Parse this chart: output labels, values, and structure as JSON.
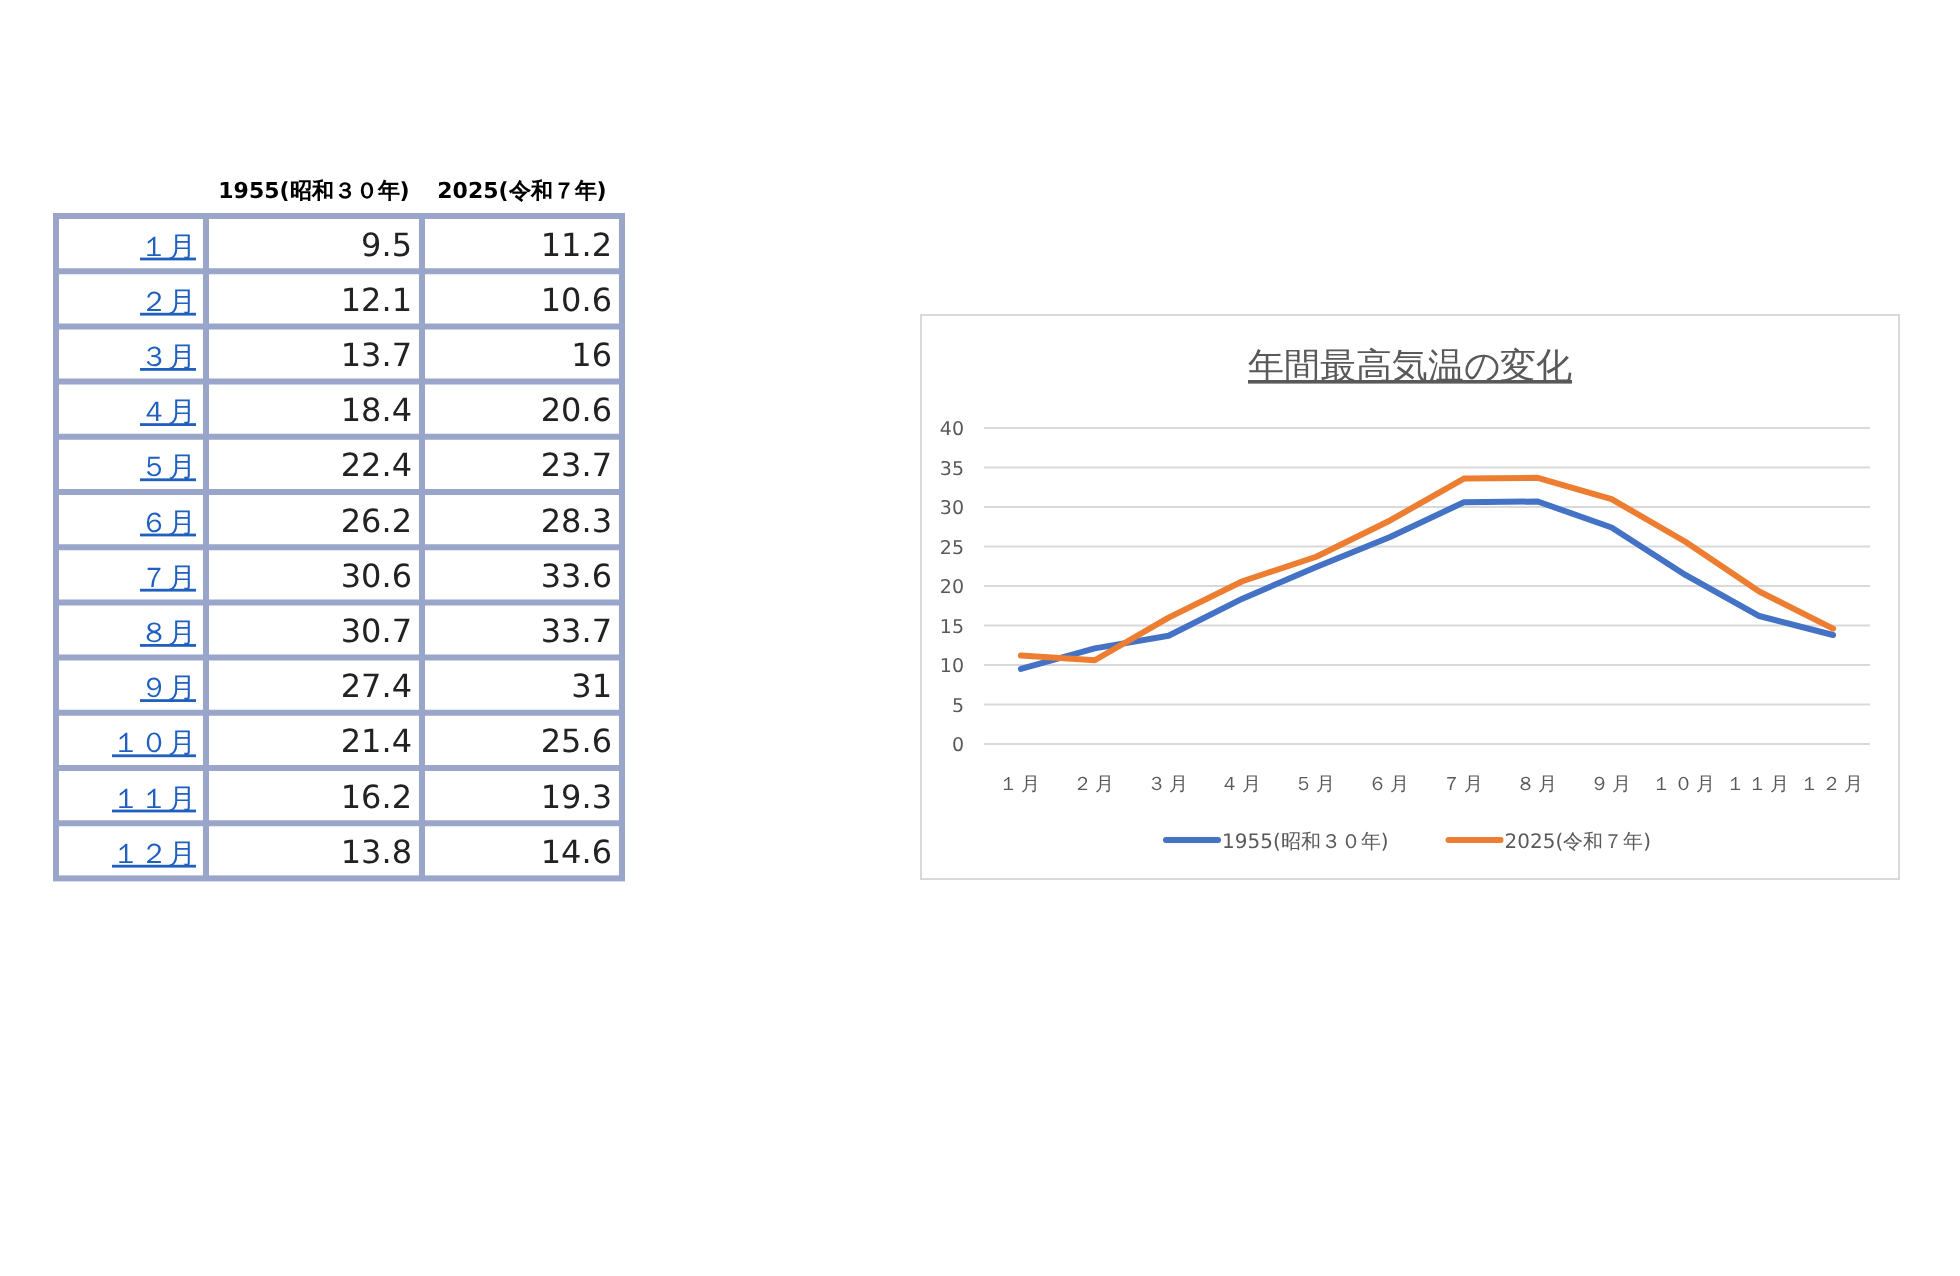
{
  "chart_data": [
    {
      "type": "heatmap",
      "categories": [
        "1955(昭和３０年)",
        "2025(令和７年)"
      ],
      "y_categories": [
        "１月",
        "２月",
        "３月",
        "４月",
        "５月",
        "６月",
        "７月",
        "８月",
        "９月",
        "１０月",
        "１１月",
        "１２月"
      ],
      "cells": [
        [
          9.5,
          11.2
        ],
        [
          12.1,
          10.6
        ],
        [
          13.7,
          16
        ],
        [
          18.4,
          20.6
        ],
        [
          22.4,
          23.7
        ],
        [
          26.2,
          28.3
        ],
        [
          30.6,
          33.6
        ],
        [
          30.7,
          33.7
        ],
        [
          27.4,
          31
        ],
        [
          21.4,
          25.6
        ],
        [
          16.2,
          19.3
        ],
        [
          13.8,
          14.6
        ]
      ],
      "data_labels": true
    },
    {
      "type": "line",
      "title": "年間最高気温の変化",
      "categories": [
        "１月",
        "２月",
        "３月",
        "４月",
        "５月",
        "６月",
        "７月",
        "８月",
        "９月",
        "１０月",
        "１１月",
        "１２月"
      ],
      "series": [
        {
          "name": "1955(昭和３０年)",
          "color": "#4472c4",
          "values": [
            9.5,
            12.1,
            13.7,
            18.4,
            22.4,
            26.2,
            30.6,
            30.7,
            27.4,
            21.4,
            16.2,
            13.8
          ]
        },
        {
          "name": "2025(令和７年)",
          "color": "#ed7d31",
          "values": [
            11.2,
            10.6,
            16,
            20.6,
            23.7,
            28.3,
            33.6,
            33.7,
            31,
            25.6,
            19.3,
            14.6
          ]
        }
      ],
      "ylim": [
        0,
        40
      ],
      "yticks": [
        0,
        5,
        10,
        15,
        20,
        25,
        30,
        35,
        40
      ],
      "grid": "y",
      "legend": "bottom",
      "marker": "none",
      "line_style": "solid"
    }
  ]
}
